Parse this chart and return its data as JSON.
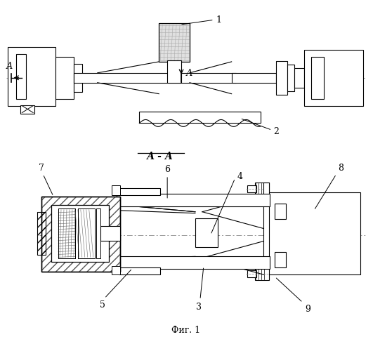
{
  "bg_color": "#ffffff",
  "line_color": "#000000",
  "dash_color": "#888888",
  "title_bottom": "Фиг. 1",
  "section_label": "А - А",
  "arrow_label_A1": "А",
  "arrow_label_A2": "А",
  "label_1": "1",
  "label_2": "2",
  "label_3": "3",
  "label_4": "4",
  "label_5": "5",
  "label_6": "6",
  "label_7": "7",
  "label_8": "8",
  "label_9": "9"
}
